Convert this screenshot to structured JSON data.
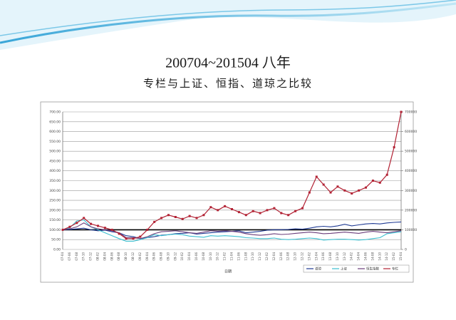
{
  "chart_data": {
    "type": "line",
    "title": "200704~201504 八年",
    "subtitle": "专栏与上证、恒指、道琼之比较",
    "x_label": "日期",
    "categories": [
      "07-04",
      "07-06",
      "07-08",
      "07-10",
      "07-12",
      "08-02",
      "08-04",
      "08-06",
      "08-08",
      "08-10",
      "08-12",
      "09-02",
      "09-04",
      "09-06",
      "09-08",
      "09-10",
      "09-12",
      "10-02",
      "10-04",
      "10-06",
      "10-08",
      "10-10",
      "10-12",
      "11-02",
      "11-04",
      "11-06",
      "11-08",
      "11-10",
      "11-12",
      "12-02",
      "12-04",
      "12-06",
      "12-08",
      "12-10",
      "12-12",
      "13-02",
      "13-04",
      "13-06",
      "13-08",
      "13-10",
      "13-12",
      "14-02",
      "14-04",
      "14-06",
      "14-08",
      "14-10",
      "14-12",
      "15-02",
      "15-04"
    ],
    "series": [
      {
        "name": "道琼",
        "color": "#1f3a93",
        "values": [
          100,
          102,
          105,
          108,
          100,
          95,
          98,
          90,
          85,
          70,
          65,
          55,
          60,
          65,
          72,
          75,
          80,
          82,
          85,
          78,
          82,
          85,
          88,
          90,
          92,
          95,
          85,
          88,
          92,
          98,
          100,
          100,
          102,
          105,
          103,
          108,
          115,
          118,
          115,
          120,
          128,
          120,
          125,
          130,
          132,
          130,
          135,
          138,
          140
        ]
      },
      {
        "name": "上证",
        "color": "#3bbfd0",
        "values": [
          100,
          110,
          145,
          150,
          115,
          100,
          85,
          70,
          55,
          42,
          42,
          50,
          60,
          75,
          70,
          75,
          78,
          75,
          68,
          65,
          62,
          70,
          68,
          70,
          68,
          65,
          60,
          58,
          55,
          55,
          58,
          52,
          50,
          52,
          55,
          58,
          55,
          48,
          50,
          52,
          52,
          50,
          48,
          50,
          55,
          60,
          80,
          85,
          90
        ]
      },
      {
        "name": "恒生指数",
        "color": "#6a3d7a",
        "values": [
          100,
          105,
          115,
          135,
          115,
          105,
          100,
          95,
          85,
          60,
          60,
          55,
          65,
          80,
          90,
          92,
          95,
          90,
          85,
          82,
          88,
          95,
          93,
          95,
          92,
          88,
          80,
          75,
          72,
          75,
          80,
          76,
          78,
          82,
          85,
          88,
          85,
          80,
          82,
          85,
          88,
          85,
          82,
          88,
          92,
          88,
          85,
          90,
          95
        ]
      },
      {
        "name": "专栏",
        "color": "#b22234",
        "markers": true,
        "values": [
          100,
          115,
          135,
          160,
          130,
          120,
          110,
          100,
          80,
          55,
          55,
          65,
          100,
          140,
          160,
          175,
          165,
          155,
          170,
          160,
          175,
          215,
          200,
          220,
          205,
          190,
          175,
          195,
          185,
          200,
          210,
          185,
          175,
          195,
          210,
          290,
          370,
          330,
          290,
          320,
          300,
          285,
          300,
          315,
          350,
          340,
          380,
          520,
          700
        ]
      }
    ],
    "reference_line": 100,
    "ylim": [
      0,
      700
    ],
    "yticks": [
      {
        "value": 0,
        "label": "0.00"
      },
      {
        "value": 50,
        "label": "50.00"
      },
      {
        "value": 100,
        "label": "100.00"
      },
      {
        "value": 150,
        "label": "150.00"
      },
      {
        "value": 200,
        "label": "200.00"
      },
      {
        "value": 250,
        "label": "250.00"
      },
      {
        "value": 300,
        "label": "300.00"
      },
      {
        "value": 350,
        "label": "350.00"
      },
      {
        "value": 400,
        "label": "400.00"
      },
      {
        "value": 450,
        "label": "450.00"
      },
      {
        "value": 500,
        "label": "500.00"
      },
      {
        "value": 550,
        "label": "550.00"
      },
      {
        "value": 600,
        "label": "600.00"
      },
      {
        "value": 650,
        "label": "650.00"
      },
      {
        "value": 700,
        "label": "700.00"
      }
    ],
    "y2lim": [
      0,
      700000
    ],
    "y2ticks": [
      0,
      100000,
      200000,
      300000,
      400000,
      500000,
      600000,
      700000
    ],
    "grid": true
  }
}
